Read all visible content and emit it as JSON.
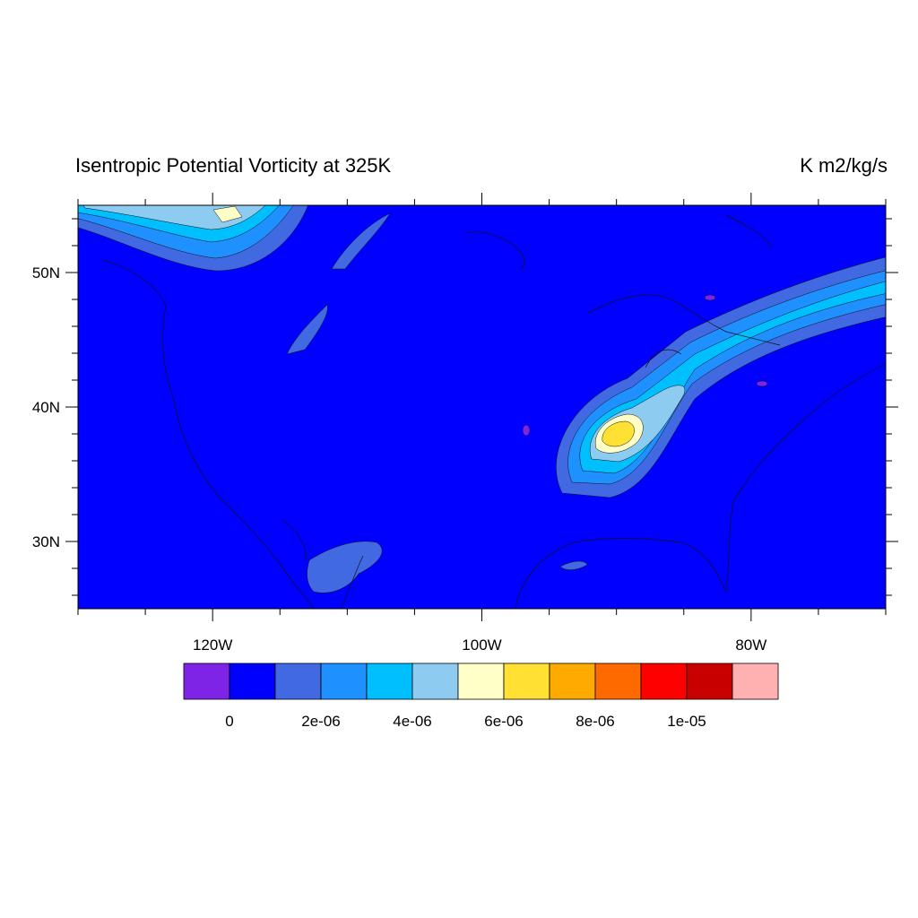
{
  "title": "Isentropic Potential Vorticity at 325K",
  "units": "K m2/kg/s",
  "map": {
    "lonlim": [
      -130,
      -70
    ],
    "latlim": [
      25,
      55
    ],
    "lat_ticks": [
      {
        "value": 30,
        "label": "30N"
      },
      {
        "value": 40,
        "label": "40N"
      },
      {
        "value": 50,
        "label": "50N"
      }
    ],
    "lat_minor_ticks": [
      26,
      28,
      32,
      34,
      36,
      38,
      42,
      44,
      46,
      48,
      52,
      54
    ],
    "lon_ticks": [
      {
        "value": -120,
        "label": "120W"
      },
      {
        "value": -100,
        "label": "100W"
      },
      {
        "value": -80,
        "label": "80W"
      }
    ],
    "lon_minor_ticks": [
      -130,
      -125,
      -115,
      -110,
      -105,
      -95,
      -90,
      -85,
      -75,
      -70
    ]
  },
  "colorbar": {
    "colors": [
      "#7d24e6",
      "#0000ff",
      "#4169e1",
      "#1e90ff",
      "#00bfff",
      "#8ecbf0",
      "#ffffc8",
      "#ffe033",
      "#ffaa00",
      "#ff6a00",
      "#ff0000",
      "#c80000",
      "#ffb0b0"
    ],
    "lim": [
      -1e-06,
      1.2e-05
    ],
    "labels": [
      0,
      {
        "value": 2e-06,
        "label": "2e-06"
      },
      {
        "value": 4e-06,
        "label": "4e-06"
      },
      {
        "value": 6e-06,
        "label": "6e-06"
      },
      {
        "value": 8e-06,
        "label": "8e-06"
      },
      {
        "value": 1e-05,
        "label": "1e-05"
      }
    ]
  }
}
